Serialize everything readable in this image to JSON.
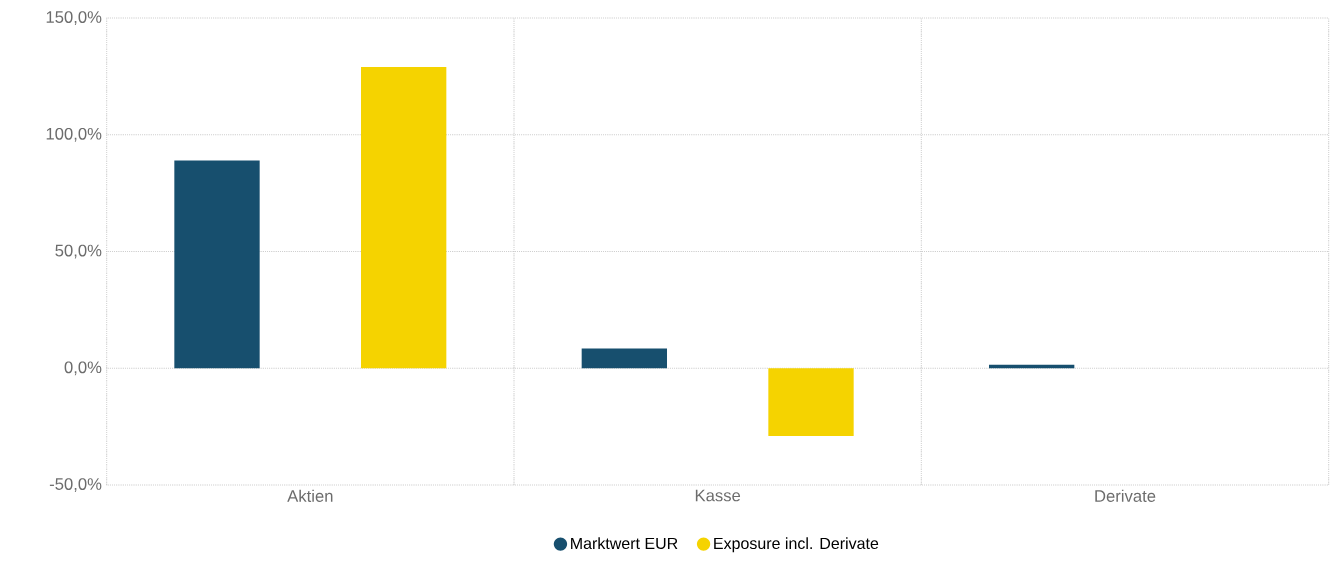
{
  "chart_data": {
    "type": "bar",
    "categories": [
      "Aktien",
      "Kasse",
      "Derivate"
    ],
    "series": [
      {
        "name": "Marktwert EUR",
        "color": "#174f6e",
        "values": [
          89,
          8.5,
          1.5
        ]
      },
      {
        "name": "Exposure incl. Derivate",
        "color": "#f5d300",
        "values": [
          129,
          -29,
          0
        ]
      }
    ],
    "ylim": [
      -50,
      150
    ],
    "yticks": [
      {
        "value": -50,
        "label": "-50,0%"
      },
      {
        "value": 0,
        "label": "0,0%"
      },
      {
        "value": 50,
        "label": "50,0%"
      },
      {
        "value": 100,
        "label": "100,0%"
      },
      {
        "value": 150,
        "label": "150,0%"
      }
    ],
    "grid": true,
    "legend": "bottom"
  }
}
